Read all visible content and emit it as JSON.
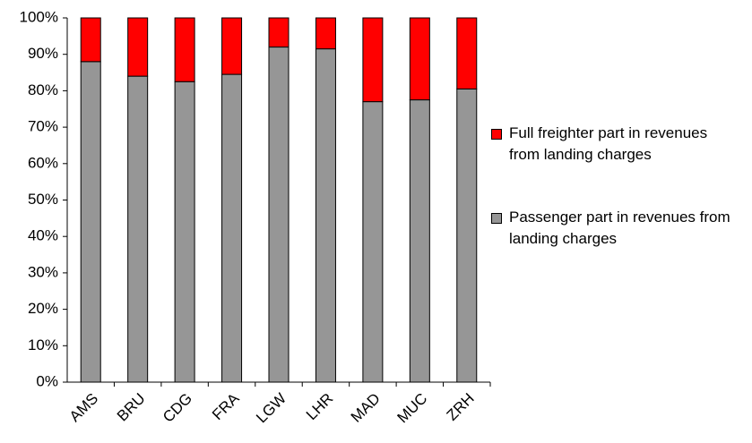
{
  "chart_data": {
    "type": "bar",
    "stacked": true,
    "categories": [
      "AMS",
      "BRU",
      "CDG",
      "FRA",
      "LGW",
      "LHR",
      "MAD",
      "MUC",
      "ZRH"
    ],
    "series": [
      {
        "name": "Passenger part in revenues from landing charges",
        "color": "#969696",
        "values": [
          88,
          84,
          82.5,
          84.5,
          92,
          91.5,
          77,
          77.5,
          80.5
        ]
      },
      {
        "name": "Full freighter part in revenues from landing charges",
        "color": "#ff0000",
        "values": [
          12,
          16,
          17.5,
          15.5,
          8,
          8.5,
          23,
          22.5,
          19.5
        ]
      }
    ],
    "ylim": [
      0,
      100
    ],
    "yticks": [
      {
        "value": 0,
        "label": "0%"
      },
      {
        "value": 10,
        "label": "10%"
      },
      {
        "value": 20,
        "label": "20%"
      },
      {
        "value": 30,
        "label": "30%"
      },
      {
        "value": 40,
        "label": "40%"
      },
      {
        "value": 50,
        "label": "50%"
      },
      {
        "value": 60,
        "label": "60%"
      },
      {
        "value": 70,
        "label": "70%"
      },
      {
        "value": 80,
        "label": "80%"
      },
      {
        "value": 90,
        "label": "90%"
      },
      {
        "value": 100,
        "label": "100%"
      }
    ],
    "grid": false
  }
}
